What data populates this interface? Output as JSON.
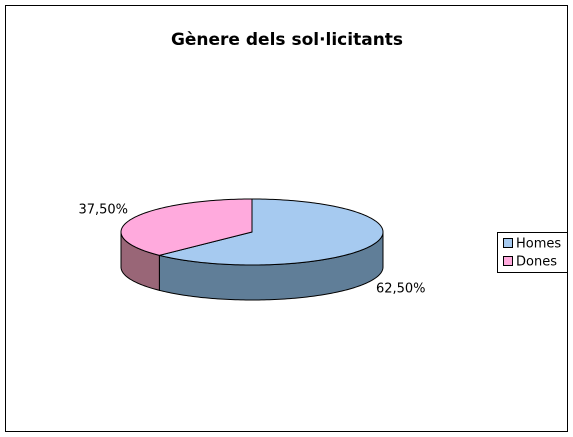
{
  "chart_data": {
    "type": "pie3d",
    "title": "Gènere dels sol·licitants",
    "categories": [
      "Homes",
      "Dones"
    ],
    "values": [
      62.5,
      37.5
    ],
    "value_labels": [
      "62,50%",
      "37,50%"
    ],
    "colors": [
      "#a6caf0",
      "#ffaadd"
    ],
    "side_colors": [
      "#607e98",
      "#996677"
    ],
    "legend": "right"
  }
}
